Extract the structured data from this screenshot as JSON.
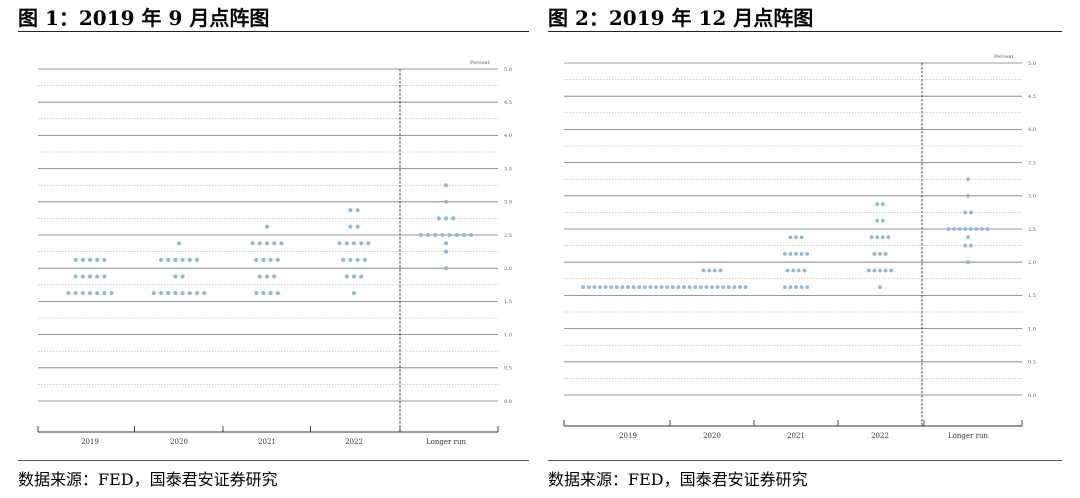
{
  "panels": [
    {
      "title": "图 1：2019 年 9 月点阵图",
      "source": "数据来源：FED，国泰君安证券研究"
    },
    {
      "title": "图 2：2019 年 12 月点阵图",
      "source": "数据来源：FED，国泰君安证券研究"
    }
  ],
  "chart_data": [
    {
      "type": "scatter",
      "title": "",
      "ylabel": "Percent",
      "ylim": [
        0,
        5
      ],
      "y_ticks": [
        "0.0",
        "0.5",
        "1.0",
        "1.5",
        "2.0",
        "2.5",
        "3.0",
        "3.5",
        "4.0",
        "4.5",
        "5.0"
      ],
      "categories": [
        "2019",
        "2020",
        "2021",
        "2022",
        "Longer run"
      ],
      "dots": [
        {
          "category": "2019",
          "levels": [
            {
              "y": 2.125,
              "n": 5
            },
            {
              "y": 1.875,
              "n": 5
            },
            {
              "y": 1.625,
              "n": 7
            }
          ]
        },
        {
          "category": "2020",
          "levels": [
            {
              "y": 2.375,
              "n": 1
            },
            {
              "y": 2.125,
              "n": 6
            },
            {
              "y": 1.875,
              "n": 2
            },
            {
              "y": 1.625,
              "n": 8
            }
          ]
        },
        {
          "category": "2021",
          "levels": [
            {
              "y": 2.625,
              "n": 1
            },
            {
              "y": 2.375,
              "n": 5
            },
            {
              "y": 2.125,
              "n": 4
            },
            {
              "y": 1.875,
              "n": 3
            },
            {
              "y": 1.625,
              "n": 4
            }
          ]
        },
        {
          "category": "2022",
          "levels": [
            {
              "y": 2.875,
              "n": 2
            },
            {
              "y": 2.625,
              "n": 2
            },
            {
              "y": 2.375,
              "n": 5
            },
            {
              "y": 2.125,
              "n": 4
            },
            {
              "y": 1.875,
              "n": 3
            },
            {
              "y": 1.625,
              "n": 1
            }
          ]
        },
        {
          "category": "Longer run",
          "levels": [
            {
              "y": 3.25,
              "n": 1
            },
            {
              "y": 3.0,
              "n": 1
            },
            {
              "y": 2.75,
              "n": 3
            },
            {
              "y": 2.5,
              "n": 8
            },
            {
              "y": 2.375,
              "n": 1
            },
            {
              "y": 2.25,
              "n": 1
            },
            {
              "y": 2.0,
              "n": 1
            }
          ]
        }
      ],
      "grid": true,
      "dot_color": "#8fb6dc"
    },
    {
      "type": "scatter",
      "title": "",
      "ylabel": "Percent",
      "ylim": [
        0,
        5
      ],
      "y_ticks": [
        "0.0",
        "0.5",
        "1.0",
        "1.5",
        "2.0",
        "2.5",
        "3.0",
        "3.5",
        "4.0",
        "4.5",
        "5.0"
      ],
      "categories": [
        "2019",
        "2020",
        "2021",
        "2022",
        "Longer run"
      ],
      "dots": [
        {
          "category": "2019",
          "levels": [
            {
              "y": 1.625,
              "n": 17
            }
          ]
        },
        {
          "category": "2020",
          "levels": [
            {
              "y": 1.875,
              "n": 4
            },
            {
              "y": 1.625,
              "n": 13
            }
          ]
        },
        {
          "category": "2021",
          "levels": [
            {
              "y": 2.375,
              "n": 3
            },
            {
              "y": 2.125,
              "n": 5
            },
            {
              "y": 1.875,
              "n": 4
            },
            {
              "y": 1.625,
              "n": 5
            }
          ]
        },
        {
          "category": "2022",
          "levels": [
            {
              "y": 2.875,
              "n": 2
            },
            {
              "y": 2.625,
              "n": 2
            },
            {
              "y": 2.375,
              "n": 4
            },
            {
              "y": 2.125,
              "n": 3
            },
            {
              "y": 1.875,
              "n": 5
            },
            {
              "y": 1.625,
              "n": 1
            }
          ]
        },
        {
          "category": "Longer run",
          "levels": [
            {
              "y": 3.25,
              "n": 1
            },
            {
              "y": 3.0,
              "n": 1
            },
            {
              "y": 2.75,
              "n": 2
            },
            {
              "y": 2.5,
              "n": 8
            },
            {
              "y": 2.375,
              "n": 1
            },
            {
              "y": 2.25,
              "n": 2
            },
            {
              "y": 2.0,
              "n": 1
            }
          ]
        }
      ],
      "grid": true,
      "dot_color": "#8fb6dc"
    }
  ]
}
